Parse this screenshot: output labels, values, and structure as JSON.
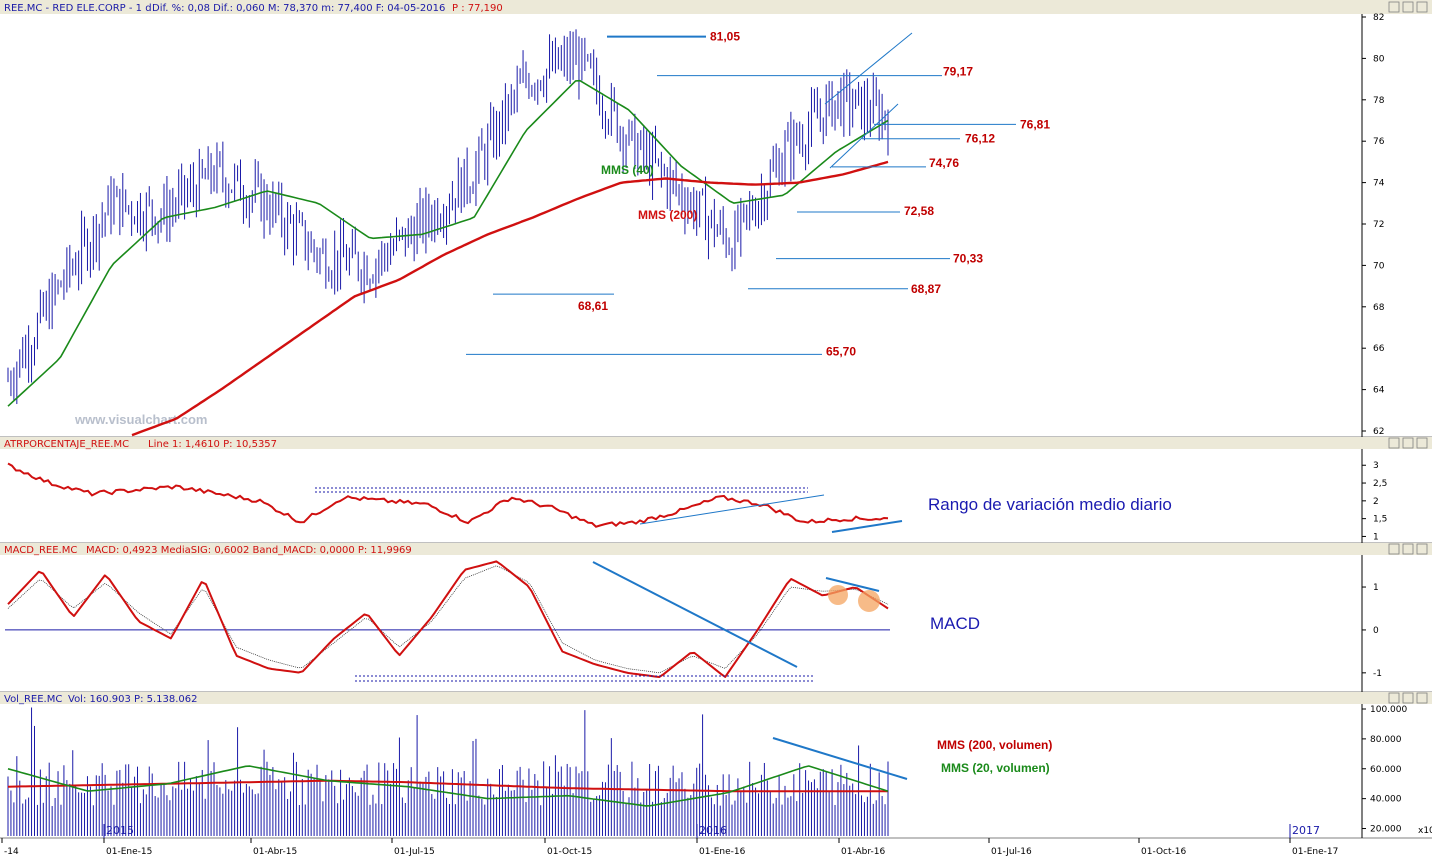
{
  "header": {
    "ticker": "REE.MC - RED ELE.CORP - 1 d",
    "stats": "Dif. %: 0,08  Dif.: 0,060  M: 78,370  m: 77,400  F: 04-05-2016",
    "last": "P : 77,190"
  },
  "watermark": "www.visualchart.com",
  "colors": {
    "price": "#1a1aa8",
    "mms40": "#1a8a1a",
    "mms200": "#d01010",
    "label": "#c00000",
    "trend": "#1f78c8",
    "note": "#1a1ab0"
  },
  "panes": {
    "atr": {
      "title": "ATRPORCENTAJE_REE.MC",
      "params": "Line 1: 1,4610  P: 10,5357",
      "note": "Rango de variación medio diario"
    },
    "macd": {
      "title": "MACD_REE.MC",
      "params": "MACD: 0,4923  MediaSIG: 0,6002  Band_MACD: 0,0000  P: 11,9969",
      "note": "MACD"
    },
    "vol": {
      "title": "Vol_REE.MC",
      "params": "Vol: 160.903  P: 5.138.062",
      "note1": "MMS (200, volumen)",
      "note2": "MMS (20, volumen)",
      "scale": "x10"
    }
  },
  "x_labels": [
    "-14",
    "01-Ene-15",
    "01-Abr-15",
    "01-Jul-15",
    "01-Oct-15",
    "01-Ene-16",
    "01-Abr-16",
    "01-Jul-16",
    "01-Oct-16",
    "01-Ene-17"
  ],
  "year_labels": [
    "2015",
    "2016",
    "2017"
  ],
  "chart_data": [
    {
      "type": "line",
      "title": "REE.MC - RED ELE.CORP - 1 d",
      "y_ticks": [
        "62",
        "64",
        "66",
        "68",
        "70",
        "72",
        "74",
        "76",
        "78",
        "80",
        "82"
      ],
      "ylim": [
        62,
        82
      ],
      "x": [
        "2014-12",
        "2015-01",
        "2015-02",
        "2015-03",
        "2015-04",
        "2015-05",
        "2015-06",
        "2015-07",
        "2015-08",
        "2015-09",
        "2015-10",
        "2015-11",
        "2015-12",
        "2016-01",
        "2016-02",
        "2016-03",
        "2016-04",
        "2016-05"
      ],
      "series": [
        {
          "name": "",
          "values": [
            64.5,
            69.0,
            73.0,
            72.5,
            74.5,
            73.0,
            70.5,
            70.0,
            72.0,
            74.5,
            79.0,
            80.0,
            76.0,
            73.5,
            71.0,
            75.5,
            78.0,
            77.2
          ]
        },
        {
          "name": "MMS (40)",
          "values": [
            63.2,
            65.5,
            70.0,
            72.3,
            72.8,
            73.6,
            73.0,
            71.3,
            71.5,
            72.3,
            76.5,
            79.0,
            77.5,
            74.8,
            73.0,
            73.4,
            75.5,
            77.0
          ]
        },
        {
          "name": "MMS (200)",
          "values": [
            61.8,
            62.6,
            64.0,
            65.5,
            67.0,
            68.5,
            69.3,
            70.5,
            71.5,
            72.3,
            73.2,
            74.0,
            74.2,
            74.0,
            73.9,
            74.0,
            74.4,
            75.0
          ]
        }
      ],
      "levels": [
        "81,05",
        "79,17",
        "76,81",
        "76,12",
        "74,76",
        "72,58",
        "70,33",
        "68,87",
        "68,61",
        "65,70"
      ],
      "annotations": [
        "MMS (40)",
        "MMS (200)"
      ]
    },
    {
      "type": "line",
      "title": "ATRPORCENTAJE_REE.MC",
      "y_ticks": [
        "1",
        "1,5",
        "2",
        "2,5",
        "3"
      ],
      "ylim": [
        0.9,
        3.4
      ],
      "values": [
        3.0,
        2.5,
        2.2,
        2.3,
        2.4,
        2.2,
        2.0,
        1.4,
        2.1,
        2.0,
        1.9,
        1.4,
        2.1,
        1.8,
        1.3,
        1.4,
        1.7,
        2.1,
        1.9,
        1.4,
        1.5,
        1.5
      ]
    },
    {
      "type": "line",
      "title": "MACD_REE.MC",
      "y_ticks": [
        "-1",
        "0",
        "1"
      ],
      "ylim": [
        -1.4,
        1.7
      ],
      "series": [
        {
          "name": "MACD",
          "values": [
            0.6,
            1.4,
            0.3,
            1.3,
            0.2,
            -0.2,
            1.2,
            -0.6,
            -0.9,
            -1.0,
            -0.2,
            0.4,
            -0.6,
            0.3,
            1.4,
            1.6,
            1.0,
            -0.5,
            -0.8,
            -1.0,
            -1.1,
            -0.5,
            -1.1,
            0.0,
            1.2,
            0.8,
            1.0,
            0.5
          ]
        },
        {
          "name": "MediaSIG",
          "values": [
            0.5,
            1.2,
            0.5,
            1.1,
            0.4,
            -0.1,
            1.0,
            -0.4,
            -0.7,
            -0.9,
            -0.3,
            0.3,
            -0.4,
            0.2,
            1.2,
            1.5,
            1.1,
            -0.3,
            -0.7,
            -0.9,
            -1.0,
            -0.6,
            -0.9,
            -0.1,
            1.0,
            0.9,
            0.95,
            0.6
          ]
        }
      ]
    },
    {
      "type": "bar",
      "title": "Vol_REE.MC",
      "y_ticks": [
        "20.000",
        "40.000",
        "60.000",
        "80.000",
        "100.000"
      ],
      "ylim": [
        15000,
        102000
      ],
      "series": [
        {
          "name": "MMS (200, volumen)",
          "values": [
            48000,
            49000,
            50000,
            51000,
            52000,
            51000,
            49000,
            47000,
            46000,
            45000,
            45000,
            45000
          ]
        },
        {
          "name": "MMS (20, volumen)",
          "values": [
            60000,
            45000,
            50000,
            62000,
            52000,
            48000,
            40000,
            42000,
            35000,
            44000,
            62000,
            45000
          ]
        }
      ]
    }
  ]
}
